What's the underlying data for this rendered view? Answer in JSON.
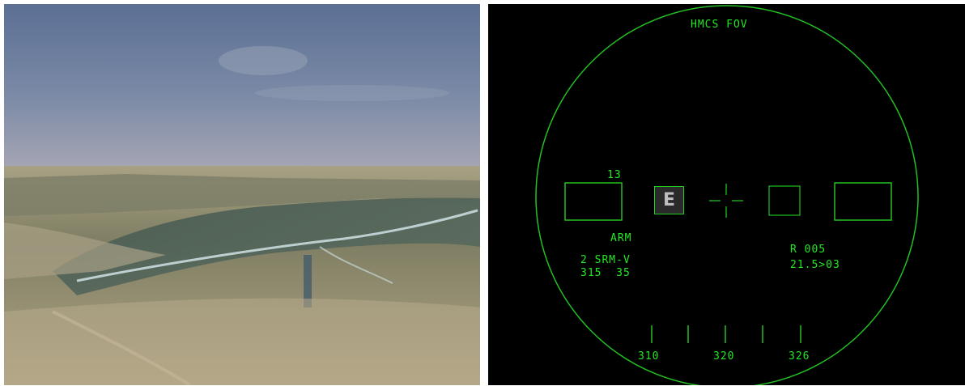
{
  "hmcs": {
    "title": "HMCS FOV",
    "target_count": "13",
    "seeker_marker": "E",
    "arm_status": "ARM",
    "weapon": "2 SRM-V",
    "weapon_params": "315  35",
    "range_label": "R 005",
    "range_value": "21.5>03",
    "heading_ticks": [
      "310",
      "320",
      "326"
    ]
  },
  "colors": {
    "hud_green": "#22e622",
    "background": "#000000"
  }
}
